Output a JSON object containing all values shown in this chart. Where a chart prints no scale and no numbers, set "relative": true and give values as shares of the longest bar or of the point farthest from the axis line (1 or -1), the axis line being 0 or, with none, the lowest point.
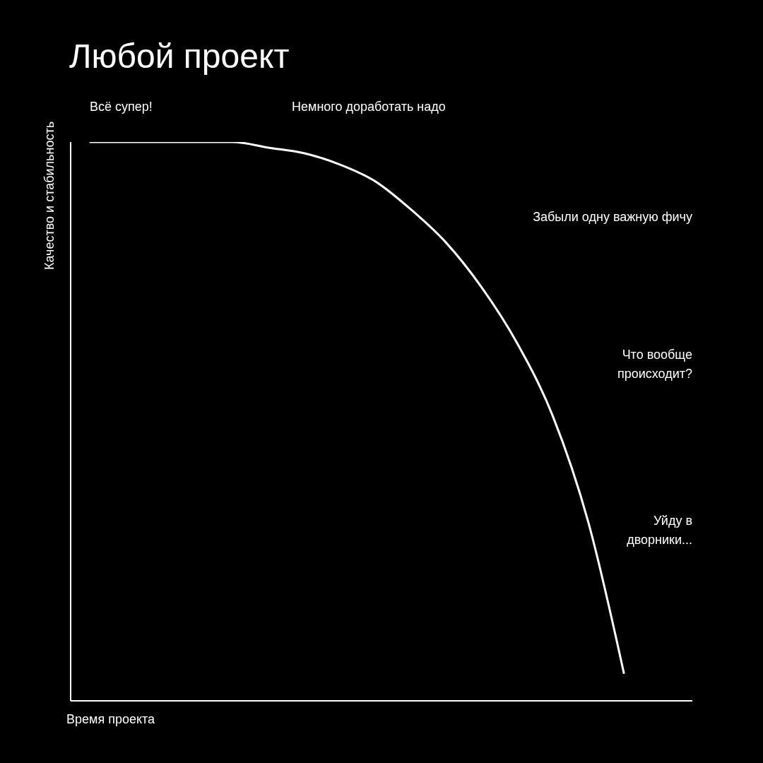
{
  "chart_data": {
    "type": "line",
    "title": "Любой проект",
    "xlabel": "Время проекта",
    "ylabel": "Качество и стабильность",
    "relative": true,
    "categories": [
      null,
      null,
      null,
      null,
      null,
      null,
      null,
      null,
      null,
      null,
      null,
      null,
      null,
      null,
      null,
      null
    ],
    "series": [
      {
        "color": "#ffffff",
        "values": [
          1,
          1,
          1,
          1,
          1,
          0.99,
          0.98,
          0.96,
          0.93,
          0.88,
          0.82,
          0.74,
          0.64,
          0.51,
          0.32,
          0.05
        ]
      }
    ],
    "annotations": [
      "Всё супер!",
      "Немного доработать надо",
      "Забыли одну важную фичу",
      "Что вообще происходит?",
      "Уйду в дворники..."
    ],
    "grid": false,
    "legend": false,
    "marker": "none",
    "line_style": "solid"
  }
}
